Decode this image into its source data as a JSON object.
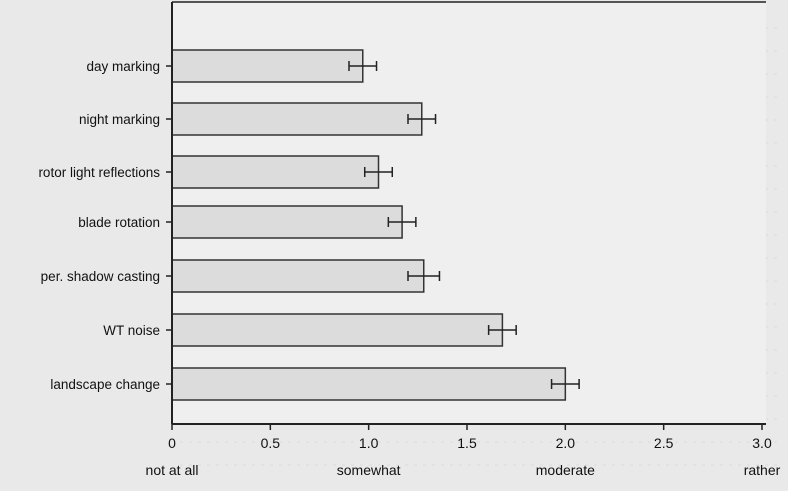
{
  "chart_data": {
    "type": "bar",
    "orientation": "horizontal",
    "categories": [
      "day marking",
      "night marking",
      "rotor light reflections",
      "blade rotation",
      "per. shadow casting",
      "WT noise",
      "landscape change"
    ],
    "values": [
      0.97,
      1.27,
      1.05,
      1.17,
      1.28,
      1.68,
      2.0
    ],
    "error": [
      0.07,
      0.07,
      0.07,
      0.07,
      0.08,
      0.07,
      0.07
    ],
    "xlim": [
      0,
      3.0
    ],
    "xticks": [
      "0",
      "0.5",
      "1.0",
      "1.5",
      "2.0",
      "2.5",
      "3.0"
    ],
    "xtick_values": [
      0,
      0.5,
      1.0,
      1.5,
      2.0,
      2.5,
      3.0
    ],
    "level_labels": [
      {
        "text": "not at all",
        "value": 0
      },
      {
        "text": "somewhat",
        "value": 1.0
      },
      {
        "text": "moderate",
        "value": 2.0
      },
      {
        "text": "rather",
        "value": 3.0
      }
    ],
    "title": "",
    "xlabel": "",
    "ylabel": "",
    "bar_color": "#dcdcdc",
    "grid": false
  }
}
